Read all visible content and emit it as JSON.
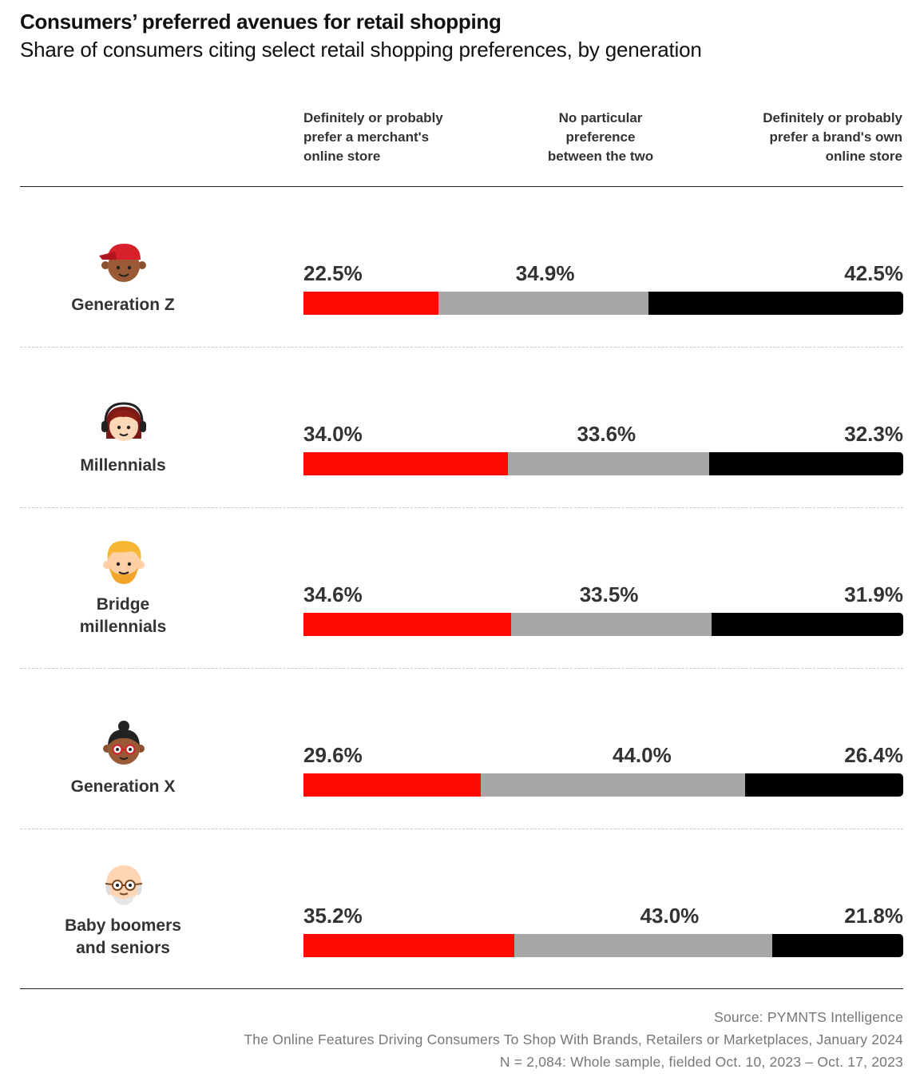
{
  "title": "Consumers’ preferred avenues for retail shopping",
  "subtitle": "Share of consumers citing select retail shopping preferences, by generation",
  "columns": [
    [
      "Definitely or probably",
      "prefer a merchant's",
      "online store"
    ],
    [
      "No particular",
      "preference",
      "between the two"
    ],
    [
      "Definitely or probably",
      "prefer a brand's own",
      "online store"
    ]
  ],
  "colors": {
    "merchant": "#ff0a00",
    "no_preference": "#a7a7a9",
    "brand": "#000000"
  },
  "chart_data": {
    "type": "bar",
    "orientation": "horizontal-stacked-100",
    "categories": [
      "Generation Z",
      "Millennials",
      "Bridge millennials",
      "Generation X",
      "Baby boomers and seniors"
    ],
    "category_lines": [
      [
        "Generation Z"
      ],
      [
        "Millennials"
      ],
      [
        "Bridge",
        "millennials"
      ],
      [
        "Generation X"
      ],
      [
        "Baby boomers",
        "and seniors"
      ]
    ],
    "series": [
      {
        "values": [
          22.5,
          34.0,
          34.6,
          29.6,
          35.2
        ],
        "labels": [
          "22.5%",
          "34.0%",
          "34.6%",
          "29.6%",
          "35.2%"
        ]
      },
      {
        "values": [
          34.9,
          33.6,
          33.5,
          44.0,
          43.0
        ],
        "labels": [
          "34.9%",
          "33.6%",
          "33.5%",
          "44.0%",
          "43.0%"
        ]
      },
      {
        "values": [
          42.5,
          32.3,
          31.9,
          26.4,
          21.8
        ],
        "labels": [
          "42.5%",
          "32.3%",
          "31.9%",
          "26.4%",
          "21.8%"
        ]
      }
    ],
    "xlim": [
      0,
      100
    ]
  },
  "avatars": [
    "teen-cap-avatar-icon",
    "woman-headset-avatar-icon",
    "bearded-man-avatar-icon",
    "woman-bun-glasses-avatar-icon",
    "bald-senior-glasses-avatar-icon"
  ],
  "source": {
    "line1": "Source: PYMNTS Intelligence",
    "line2": "The Online Features Driving Consumers To Shop With Brands, Retailers or Marketplaces, January 2024",
    "line3": "N = 2,084: Whole sample, fielded Oct. 10, 2023 – Oct. 17, 2023"
  }
}
